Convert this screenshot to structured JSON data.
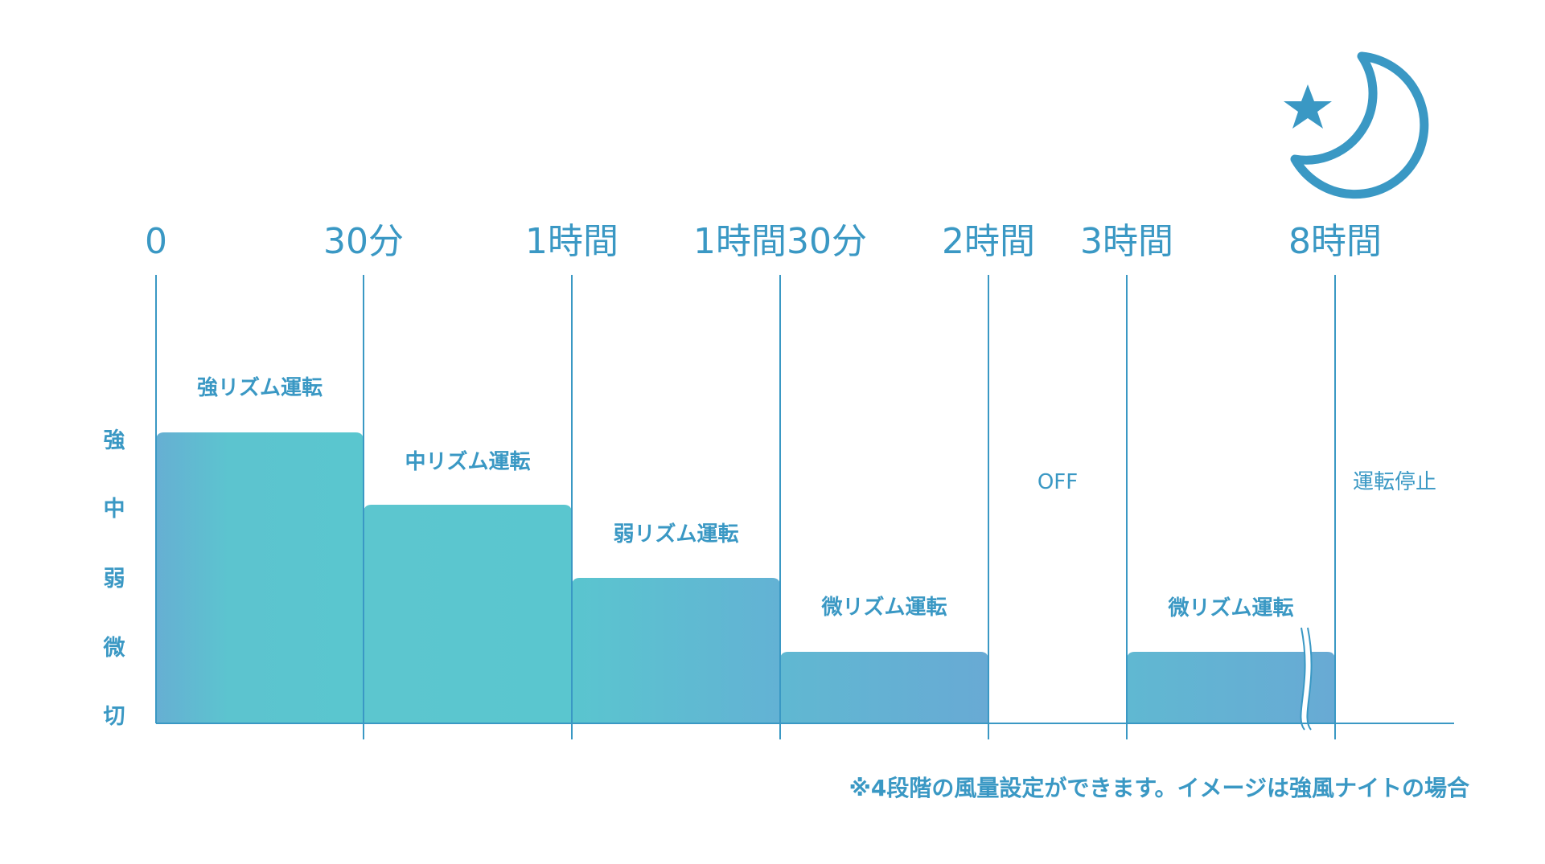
{
  "chart_data": {
    "type": "bar",
    "x_ticks": [
      "0",
      "30分",
      "1時間",
      "1時間30分",
      "2時間",
      "3時間",
      "8時間"
    ],
    "y_levels": [
      "強",
      "中",
      "弱",
      "微",
      "切"
    ],
    "segments": [
      {
        "start": "0",
        "end": "30分",
        "level": "強",
        "label": "強リズム運転"
      },
      {
        "start": "30分",
        "end": "1時間",
        "level": "中",
        "label": "中リズム運転"
      },
      {
        "start": "1時間",
        "end": "1時間30分",
        "level": "弱",
        "label": "弱リズム運転"
      },
      {
        "start": "1時間30分",
        "end": "2時間",
        "level": "微",
        "label": "微リズム運転"
      },
      {
        "start": "2時間",
        "end": "3時間",
        "level": "切",
        "label": "OFF"
      },
      {
        "start": "3時間",
        "end": "8時間",
        "level": "微",
        "label": "微リズム運転",
        "axis_break": true
      },
      {
        "start": "8時間",
        "end": null,
        "level": "切",
        "label": "運転停止"
      }
    ],
    "note": "※4段階の風量設定ができます。イメージは強風ナイトの場合",
    "icon": "moon-star-icon",
    "colors": {
      "accent": "#3a98c4",
      "fill_teal": "#5cc5cf",
      "fill_blue": "#65acd1",
      "line": "#3a98c4"
    }
  }
}
